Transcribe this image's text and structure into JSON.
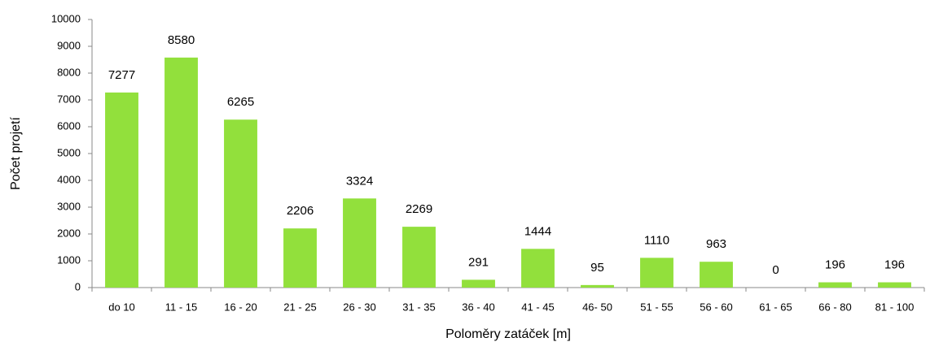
{
  "chart_data": {
    "type": "bar",
    "x_label": "Poloměry zatáček [m]",
    "y_label": "Počet projetí",
    "categories": [
      "do 10",
      "11 - 15",
      "16 - 20",
      "21 - 25",
      "26 - 30",
      "31 - 35",
      "36 - 40",
      "41 - 45",
      "46- 50",
      "51 - 55",
      "56 - 60",
      "61 - 65",
      "66 - 80",
      "81 - 100"
    ],
    "values": [
      7277,
      8580,
      6265,
      2206,
      3324,
      2269,
      291,
      1444,
      95,
      1110,
      963,
      0,
      196,
      196
    ],
    "color": "#92e03c",
    "ylim": [
      0,
      10000
    ],
    "yticks": [
      0,
      1000,
      2000,
      3000,
      4000,
      5000,
      6000,
      7000,
      8000,
      9000,
      10000
    ],
    "grid": false
  }
}
